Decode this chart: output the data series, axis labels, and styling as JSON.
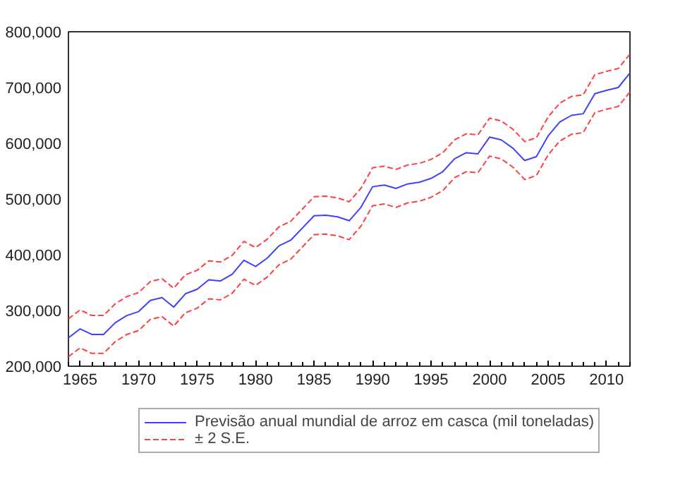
{
  "chart_data": {
    "type": "line",
    "x": [
      1964,
      1965,
      1966,
      1967,
      1968,
      1969,
      1970,
      1971,
      1972,
      1973,
      1974,
      1975,
      1976,
      1977,
      1978,
      1979,
      1980,
      1981,
      1982,
      1983,
      1984,
      1985,
      1986,
      1987,
      1988,
      1989,
      1990,
      1991,
      1992,
      1993,
      1994,
      1995,
      1996,
      1997,
      1998,
      1999,
      2000,
      2001,
      2002,
      2003,
      2004,
      2005,
      2006,
      2007,
      2008,
      2009,
      2010,
      2011,
      2012
    ],
    "series": [
      {
        "name": "Previsão anual mundial de arroz em casca (mil toneladas)",
        "color": "#4040ff",
        "line_style": "solid",
        "values": [
          251000,
          267000,
          257000,
          257000,
          278000,
          291000,
          298000,
          318000,
          323000,
          306000,
          330000,
          338000,
          355000,
          353000,
          365000,
          390000,
          379000,
          394000,
          416000,
          426000,
          448000,
          470000,
          471000,
          468000,
          461000,
          485000,
          522000,
          525000,
          519000,
          527000,
          530000,
          537000,
          549000,
          572000,
          583000,
          581000,
          611000,
          606000,
          591000,
          569000,
          576000,
          613000,
          638000,
          650000,
          653000,
          689000,
          695000,
          700000,
          726000
        ]
      },
      {
        "name": "± 2 S.E.",
        "color": "#ff4040",
        "line_style": "dashed",
        "values": [
          285000,
          301000,
          291000,
          291000,
          312000,
          325000,
          332000,
          352000,
          357000,
          340000,
          364000,
          372000,
          389000,
          387000,
          399000,
          424000,
          413000,
          428000,
          450000,
          460000,
          482000,
          504000,
          505000,
          502000,
          495000,
          519000,
          556000,
          559000,
          553000,
          561000,
          564000,
          571000,
          583000,
          606000,
          617000,
          615000,
          645000,
          640000,
          625000,
          603000,
          610000,
          647000,
          672000,
          684000,
          687000,
          723000,
          729000,
          734000,
          760000
        ]
      },
      {
        "color": "#ff4040",
        "line_style": "dashed",
        "values": [
          217000,
          233000,
          223000,
          223000,
          244000,
          257000,
          264000,
          284000,
          289000,
          272000,
          296000,
          304000,
          321000,
          319000,
          331000,
          356000,
          345000,
          360000,
          382000,
          392000,
          414000,
          436000,
          437000,
          434000,
          427000,
          451000,
          488000,
          491000,
          485000,
          493000,
          496000,
          503000,
          515000,
          538000,
          549000,
          547000,
          577000,
          572000,
          557000,
          535000,
          542000,
          579000,
          604000,
          616000,
          619000,
          655000,
          661000,
          666000,
          692000
        ]
      }
    ],
    "xlim": [
      1964,
      2012
    ],
    "xticks": [
      1965,
      1970,
      1975,
      1980,
      1985,
      1990,
      1995,
      2000,
      2005,
      2010
    ],
    "ylim": [
      200000,
      800000
    ],
    "yticks": [
      {
        "value": 200000,
        "label": "200,000"
      },
      {
        "value": 300000,
        "label": "300,000"
      },
      {
        "value": 400000,
        "label": "400,000"
      },
      {
        "value": 500000,
        "label": "500,000"
      },
      {
        "value": 600000,
        "label": "600,000"
      },
      {
        "value": 700000,
        "label": "700,000"
      },
      {
        "value": 800000,
        "label": "800,000"
      }
    ],
    "grid": false,
    "legend": "bottom",
    "marker": "none"
  }
}
